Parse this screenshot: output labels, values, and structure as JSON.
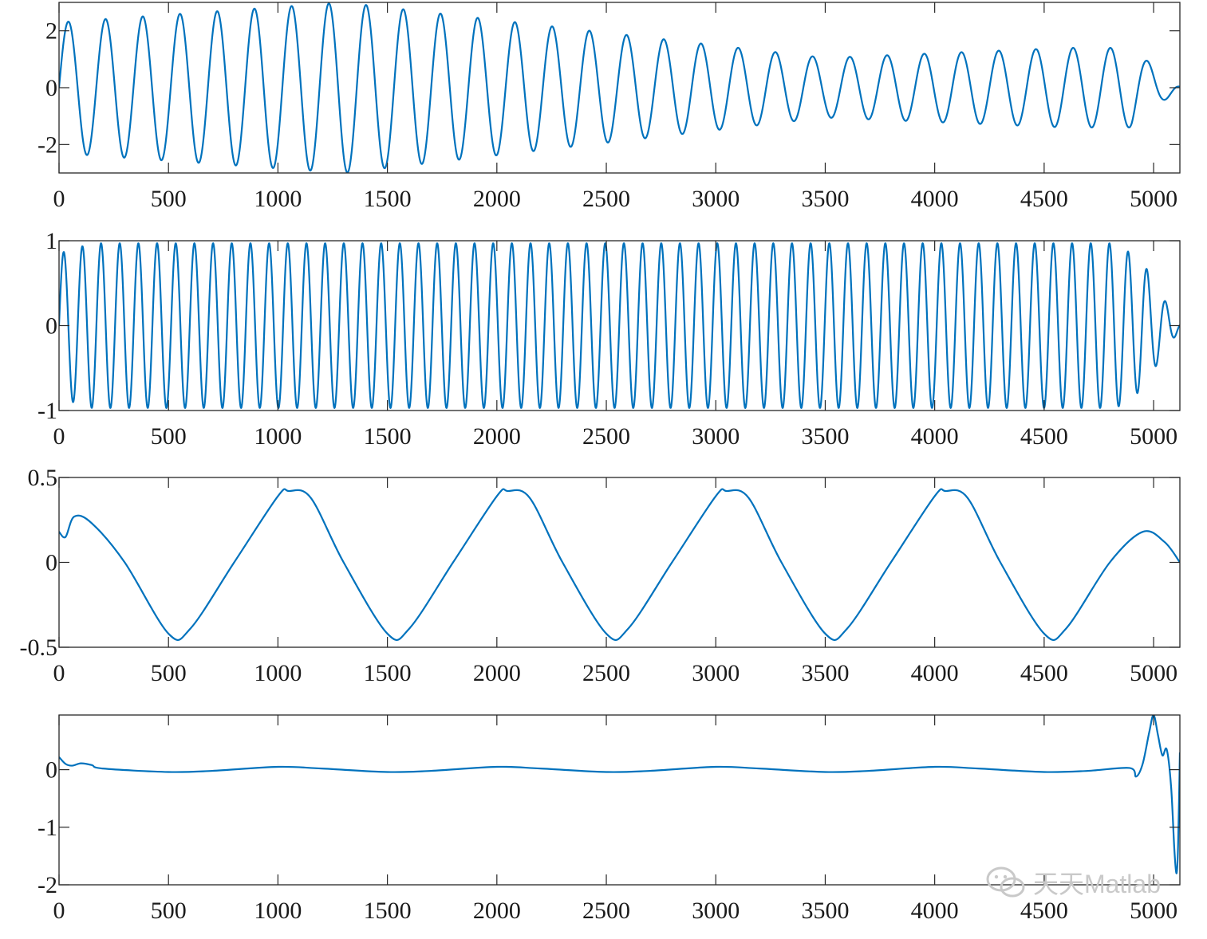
{
  "figure": {
    "line_color": "#0072BD",
    "watermark": "天天Matlab"
  },
  "chart_data": [
    {
      "type": "line",
      "xlim": [
        0,
        5120
      ],
      "ylim": [
        -3,
        3
      ],
      "xticks": [
        0,
        500,
        1000,
        1500,
        2000,
        2500,
        3000,
        3500,
        4000,
        4500,
        5000
      ],
      "xtick_labels": [
        "0",
        "500",
        "1000",
        "1500",
        "2000",
        "2500",
        "3000",
        "3500",
        "4000",
        "4500",
        "5000"
      ],
      "yticks": [
        -2,
        0,
        2
      ],
      "ytick_labels": [
        "-2",
        "0",
        "2"
      ],
      "grid": false,
      "series": [
        {
          "signal": "am-sine",
          "period": 170,
          "envelope": [
            [
              0,
              2.3
            ],
            [
              1300,
              3.0
            ],
            [
              3500,
              1.05
            ],
            [
              4600,
              1.4
            ],
            [
              4900,
              1.4
            ],
            [
              5040,
              0.5
            ],
            [
              5120,
              0.05
            ]
          ]
        }
      ]
    },
    {
      "type": "line",
      "xlim": [
        0,
        5120
      ],
      "ylim": [
        -1,
        1
      ],
      "xticks": [
        0,
        500,
        1000,
        1500,
        2000,
        2500,
        3000,
        3500,
        4000,
        4500,
        5000
      ],
      "xtick_labels": [
        "0",
        "500",
        "1000",
        "1500",
        "2000",
        "2500",
        "3000",
        "3500",
        "4000",
        "4500",
        "5000"
      ],
      "yticks": [
        -1,
        0,
        1
      ],
      "ytick_labels": [
        "-1",
        "0",
        "1"
      ],
      "grid": false,
      "series": [
        {
          "signal": "am-sine",
          "period": 85.3,
          "envelope": [
            [
              0,
              0.85
            ],
            [
              150,
              0.97
            ],
            [
              4830,
              0.97
            ],
            [
              4950,
              0.75
            ],
            [
              5050,
              0.3
            ],
            [
              5120,
              0.05
            ]
          ]
        }
      ]
    },
    {
      "type": "line",
      "xlim": [
        0,
        5120
      ],
      "ylim": [
        -0.5,
        0.5
      ],
      "xticks": [
        0,
        500,
        1000,
        1500,
        2000,
        2500,
        3000,
        3500,
        4000,
        4500,
        5000
      ],
      "xtick_labels": [
        "0",
        "500",
        "1000",
        "1500",
        "2000",
        "2500",
        "3000",
        "3500",
        "4000",
        "4500",
        "5000"
      ],
      "yticks": [
        -0.5,
        0,
        0.5
      ],
      "ytick_labels": [
        "-0.5",
        "0",
        "0.5"
      ],
      "grid": false,
      "series": [
        {
          "signal": "points",
          "points": [
            [
              0,
              0.18
            ],
            [
              30,
              0.15
            ],
            [
              70,
              0.27
            ],
            [
              150,
              0.23
            ],
            [
              300,
              0.0
            ],
            [
              500,
              -0.42
            ],
            [
              600,
              -0.39
            ],
            [
              800,
              0.0
            ],
            [
              1000,
              0.39
            ],
            [
              1050,
              0.42
            ],
            [
              1150,
              0.38
            ],
            [
              1300,
              0.0
            ],
            [
              1500,
              -0.42
            ],
            [
              1600,
              -0.39
            ],
            [
              1800,
              0.0
            ],
            [
              2000,
              0.39
            ],
            [
              2050,
              0.42
            ],
            [
              2150,
              0.38
            ],
            [
              2300,
              0.0
            ],
            [
              2500,
              -0.42
            ],
            [
              2600,
              -0.39
            ],
            [
              2800,
              0.0
            ],
            [
              3000,
              0.39
            ],
            [
              3050,
              0.42
            ],
            [
              3150,
              0.38
            ],
            [
              3300,
              0.0
            ],
            [
              3500,
              -0.42
            ],
            [
              3600,
              -0.39
            ],
            [
              3800,
              0.0
            ],
            [
              4000,
              0.39
            ],
            [
              4050,
              0.42
            ],
            [
              4150,
              0.38
            ],
            [
              4300,
              0.0
            ],
            [
              4500,
              -0.42
            ],
            [
              4600,
              -0.39
            ],
            [
              4800,
              0.0
            ],
            [
              4950,
              0.18
            ],
            [
              5050,
              0.12
            ],
            [
              5120,
              0.0
            ]
          ]
        }
      ]
    },
    {
      "type": "line",
      "xlim": [
        0,
        5120
      ],
      "ylim": [
        -2,
        0.95
      ],
      "xticks": [
        0,
        500,
        1000,
        1500,
        2000,
        2500,
        3000,
        3500,
        4000,
        4500,
        5000
      ],
      "xtick_labels": [
        "0",
        "500",
        "1000",
        "1500",
        "2000",
        "2500",
        "3000",
        "3500",
        "4000",
        "4500",
        "5000"
      ],
      "yticks": [
        -2,
        -1,
        0
      ],
      "ytick_labels": [
        "-2",
        "-1",
        "0"
      ],
      "grid": false,
      "series": [
        {
          "signal": "points",
          "points": [
            [
              0,
              0.22
            ],
            [
              30,
              0.1
            ],
            [
              60,
              0.07
            ],
            [
              100,
              0.11
            ],
            [
              150,
              0.08
            ],
            [
              200,
              0.02
            ],
            [
              500,
              -0.04
            ],
            [
              700,
              -0.02
            ],
            [
              1000,
              0.05
            ],
            [
              1200,
              0.02
            ],
            [
              1500,
              -0.04
            ],
            [
              1700,
              -0.02
            ],
            [
              2000,
              0.05
            ],
            [
              2200,
              0.02
            ],
            [
              2500,
              -0.04
            ],
            [
              2700,
              -0.02
            ],
            [
              3000,
              0.05
            ],
            [
              3200,
              0.02
            ],
            [
              3500,
              -0.04
            ],
            [
              3700,
              -0.02
            ],
            [
              4000,
              0.05
            ],
            [
              4200,
              0.02
            ],
            [
              4500,
              -0.04
            ],
            [
              4700,
              -0.02
            ],
            [
              4890,
              0.03
            ],
            [
              4920,
              -0.12
            ],
            [
              4950,
              0.1
            ],
            [
              4980,
              0.65
            ],
            [
              5000,
              0.95
            ],
            [
              5020,
              0.6
            ],
            [
              5040,
              0.25
            ],
            [
              5060,
              0.35
            ],
            [
              5080,
              -0.3
            ],
            [
              5095,
              -1.4
            ],
            [
              5105,
              -1.8
            ],
            [
              5112,
              -1.3
            ],
            [
              5120,
              0.3
            ]
          ]
        }
      ]
    }
  ]
}
